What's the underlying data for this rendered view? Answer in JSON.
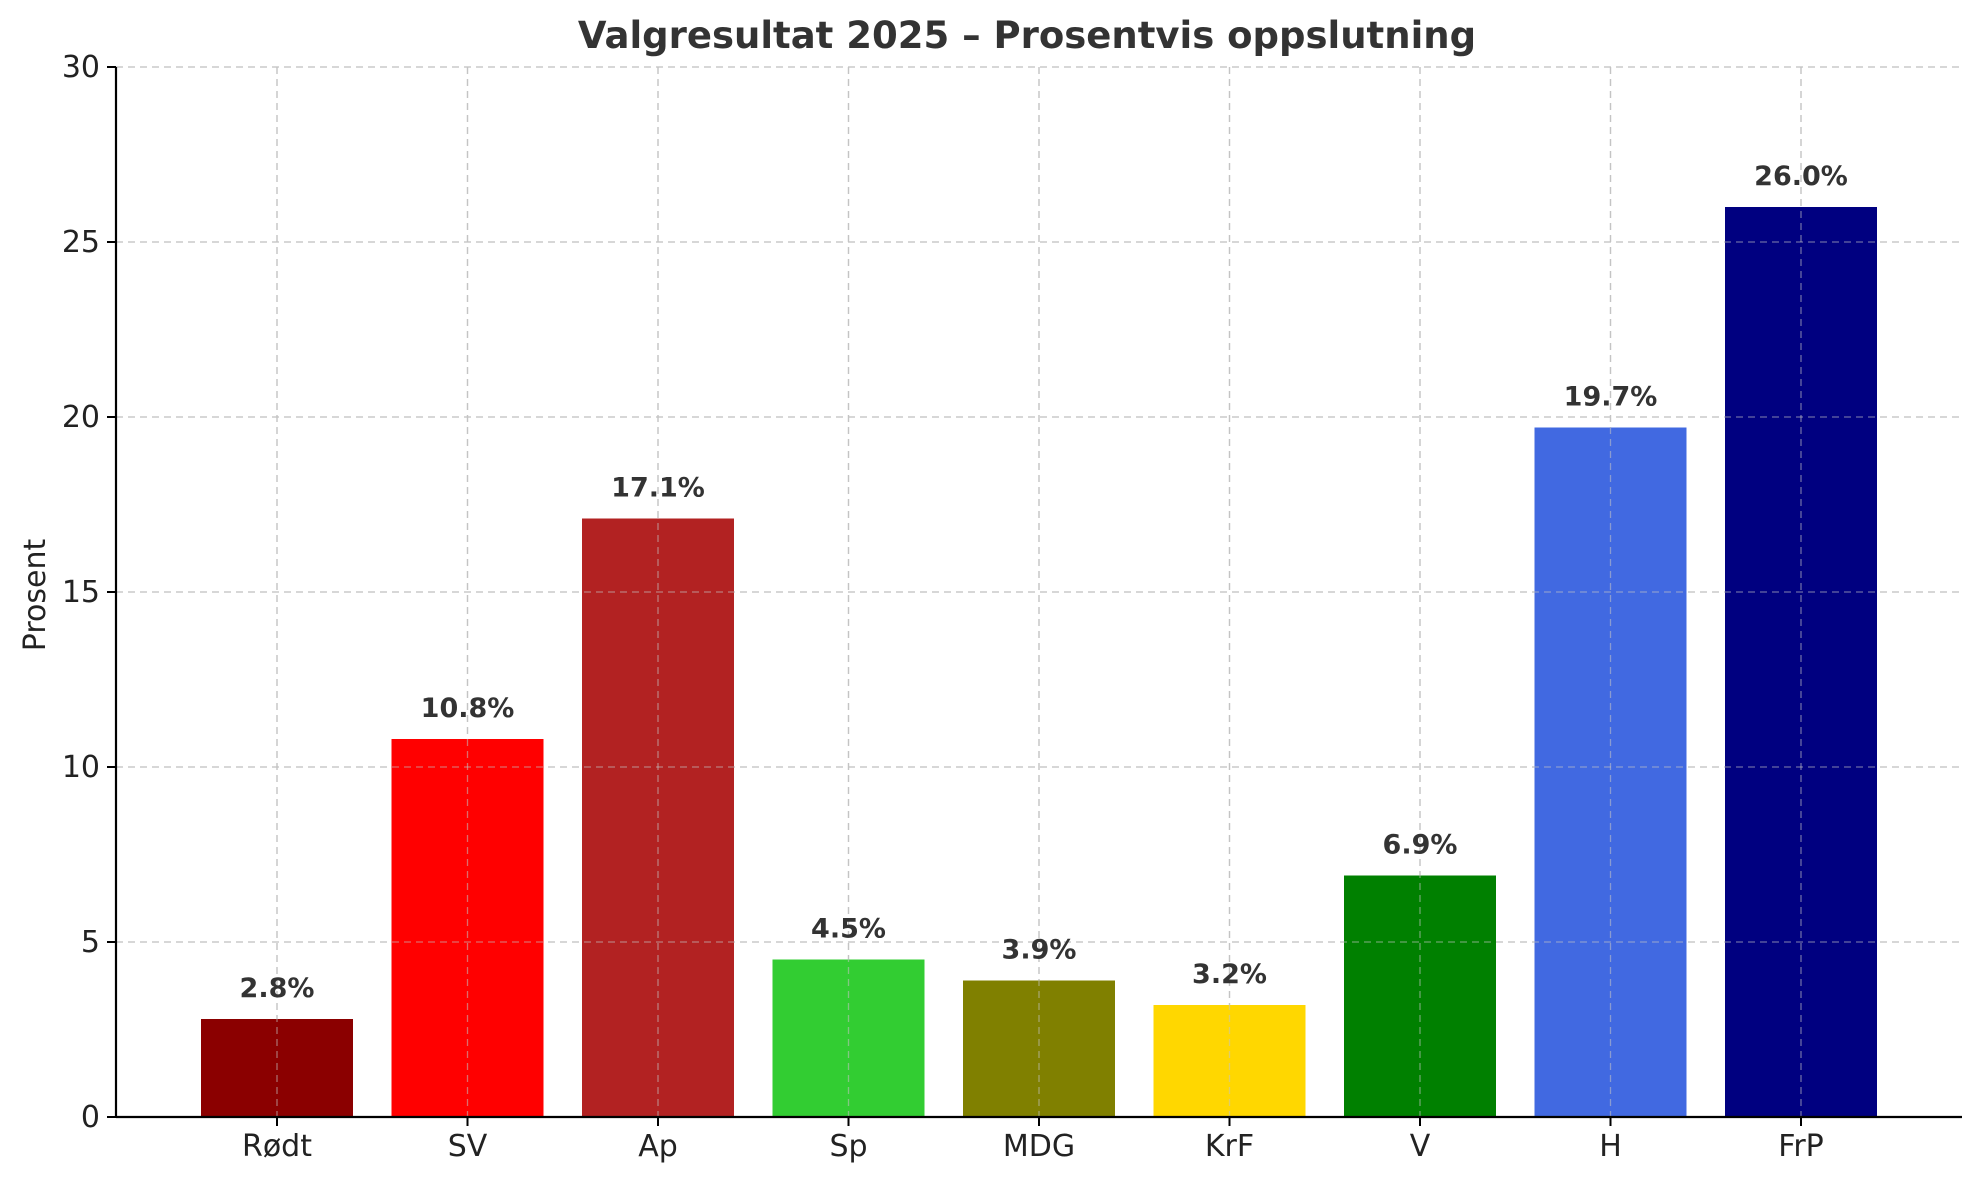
{
  "chart_data": {
    "type": "bar",
    "title": "Valgresultat 2025 – Prosentvis oppslutning",
    "xlabel": "",
    "ylabel": "Prosent",
    "ylim": [
      0,
      30
    ],
    "yticks": [
      0,
      5,
      10,
      15,
      20,
      25,
      30
    ],
    "grid": true,
    "categories": [
      "Rødt",
      "SV",
      "Ap",
      "Sp",
      "MDG",
      "KrF",
      "V",
      "H",
      "FrP"
    ],
    "values": [
      2.8,
      10.8,
      17.1,
      4.5,
      3.9,
      3.2,
      6.9,
      19.7,
      26.0
    ],
    "value_labels": [
      "2.8%",
      "10.8%",
      "17.1%",
      "4.5%",
      "3.9%",
      "3.2%",
      "6.9%",
      "19.7%",
      "26.0%"
    ],
    "colors": [
      "#8b0000",
      "#ff0000",
      "#b22222",
      "#32cd32",
      "#808000",
      "#ffd700",
      "#008000",
      "#4169e1",
      "#000080"
    ]
  }
}
